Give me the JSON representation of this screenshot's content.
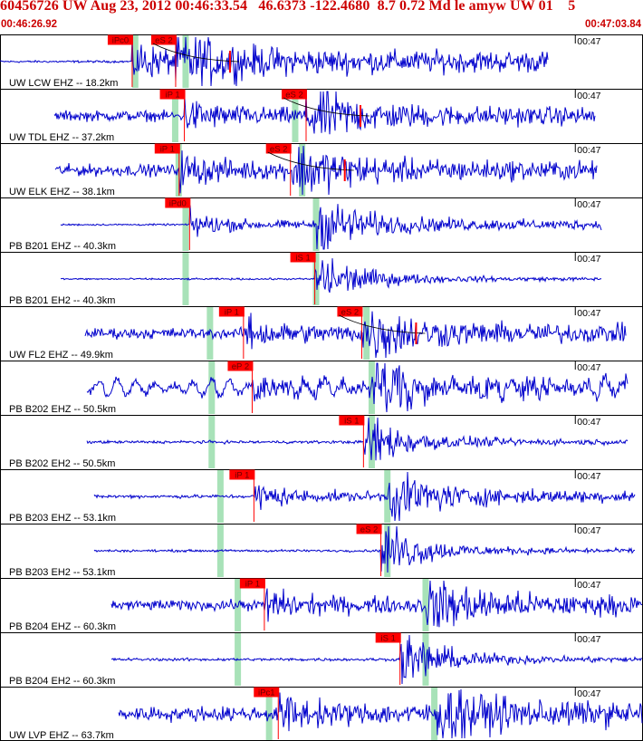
{
  "header": {
    "title": "60456726 UW Aug 23, 2012 00:46:33.54   46.6373 -122.4680  8.7 0.72 Md le amyw UW 01    5",
    "start_time": "00:46:26.92",
    "end_time": "00:47:03.84"
  },
  "chart_data": {
    "type": "seismogram",
    "time_range": [
      "00:46:26.92",
      "00:47:03.84"
    ],
    "duration_s": 36.92,
    "minute_tick_label": "00:47",
    "minute_tick_offset_s": 33.08,
    "colors": {
      "trace": "#0000cc",
      "pick": "#ff0000",
      "theoretical": "#a8e2b8",
      "grid": "#000000"
    },
    "traces": [
      {
        "label": "UW LCW EHZ -- 18.2km",
        "picks": [
          {
            "label": "iPc0",
            "t": 7.6
          },
          {
            "label": "eS 2",
            "t": 10.1
          }
        ],
        "window": [
          0.0,
          31.5
        ],
        "amp": 0.25,
        "p_theo": 7.8,
        "s_theo": 10.7,
        "clipped": true
      },
      {
        "label": "UW TDL EHZ -- 37.2km",
        "picks": [
          {
            "label": "iP 1",
            "t": 10.6
          },
          {
            "label": "eS 2",
            "t": 17.6
          }
        ],
        "window": [
          3.1,
          34.2
        ],
        "amp": 0.18,
        "p_theo": 10.1,
        "s_theo": 17.0
      },
      {
        "label": "UW ELK EHZ -- 38.1km",
        "picks": [
          {
            "label": "iP 1",
            "t": 10.3
          },
          {
            "label": "eS 2",
            "t": 16.7
          }
        ],
        "window": [
          3.2,
          34.3
        ],
        "amp": 0.2,
        "p_theo": 10.3,
        "s_theo": 17.4
      },
      {
        "label": "PB B201 EHZ -- 40.3km",
        "picks": [
          {
            "label": "iPd0",
            "t": 10.9
          }
        ],
        "window": [
          3.5,
          34.6
        ],
        "amp": 0.03,
        "p_theo": 10.7,
        "s_theo": 18.2
      },
      {
        "label": "PB B201 EH2 -- 40.3km",
        "picks": [
          {
            "label": "iS 1",
            "t": 18.1
          }
        ],
        "window": [
          3.5,
          34.6
        ],
        "amp": 0.03,
        "p_theo": 10.7,
        "s_theo": 18.2
      },
      {
        "label": "UW FL2 EHZ -- 49.9km",
        "picks": [
          {
            "label": "iP 1",
            "t": 14.0
          },
          {
            "label": "eS 2",
            "t": 20.8
          }
        ],
        "window": [
          4.9,
          36.0
        ],
        "amp": 0.18,
        "p_theo": 12.1,
        "s_theo": 21.1
      },
      {
        "label": "PB B202 EHZ -- 50.5km",
        "picks": [
          {
            "label": "eP 2",
            "t": 14.5
          }
        ],
        "window": [
          5.0,
          36.1
        ],
        "amp": 0.15,
        "p_theo": 12.2,
        "s_theo": 21.4
      },
      {
        "label": "PB B202 EH2 -- 50.5km",
        "picks": [
          {
            "label": "iS 1",
            "t": 20.9
          }
        ],
        "window": [
          5.0,
          36.1
        ],
        "amp": 0.05,
        "p_theo": 12.2,
        "s_theo": 21.4
      },
      {
        "label": "PB B203 EHZ -- 53.1km",
        "picks": [
          {
            "label": "iP 1",
            "t": 14.6
          }
        ],
        "window": [
          5.4,
          36.5
        ],
        "amp": 0.06,
        "p_theo": 12.7,
        "s_theo": 22.3
      },
      {
        "label": "PB B203 EH2 -- 53.1km",
        "picks": [
          {
            "label": "eS 2",
            "t": 21.9
          }
        ],
        "window": [
          5.4,
          36.5
        ],
        "amp": 0.04,
        "p_theo": 12.7,
        "s_theo": 22.3
      },
      {
        "label": "PB B204 EHZ -- 60.3km",
        "picks": [
          {
            "label": "iP 1",
            "t": 15.2
          }
        ],
        "window": [
          6.4,
          36.9
        ],
        "amp": 0.18,
        "p_theo": 13.7,
        "s_theo": 24.5
      },
      {
        "label": "PB B204 EH2 -- 60.3km",
        "picks": [
          {
            "label": "iS 1",
            "t": 23.0
          }
        ],
        "window": [
          6.4,
          36.9
        ],
        "amp": 0.05,
        "p_theo": 13.7,
        "s_theo": 24.5
      },
      {
        "label": "UW LVP EHZ -- 63.7km",
        "picks": [
          {
            "label": "iPc1",
            "t": 16.0
          }
        ],
        "window": [
          6.8,
          36.9
        ],
        "amp": 0.25,
        "p_theo": 15.5,
        "s_theo": 25.0
      }
    ]
  }
}
